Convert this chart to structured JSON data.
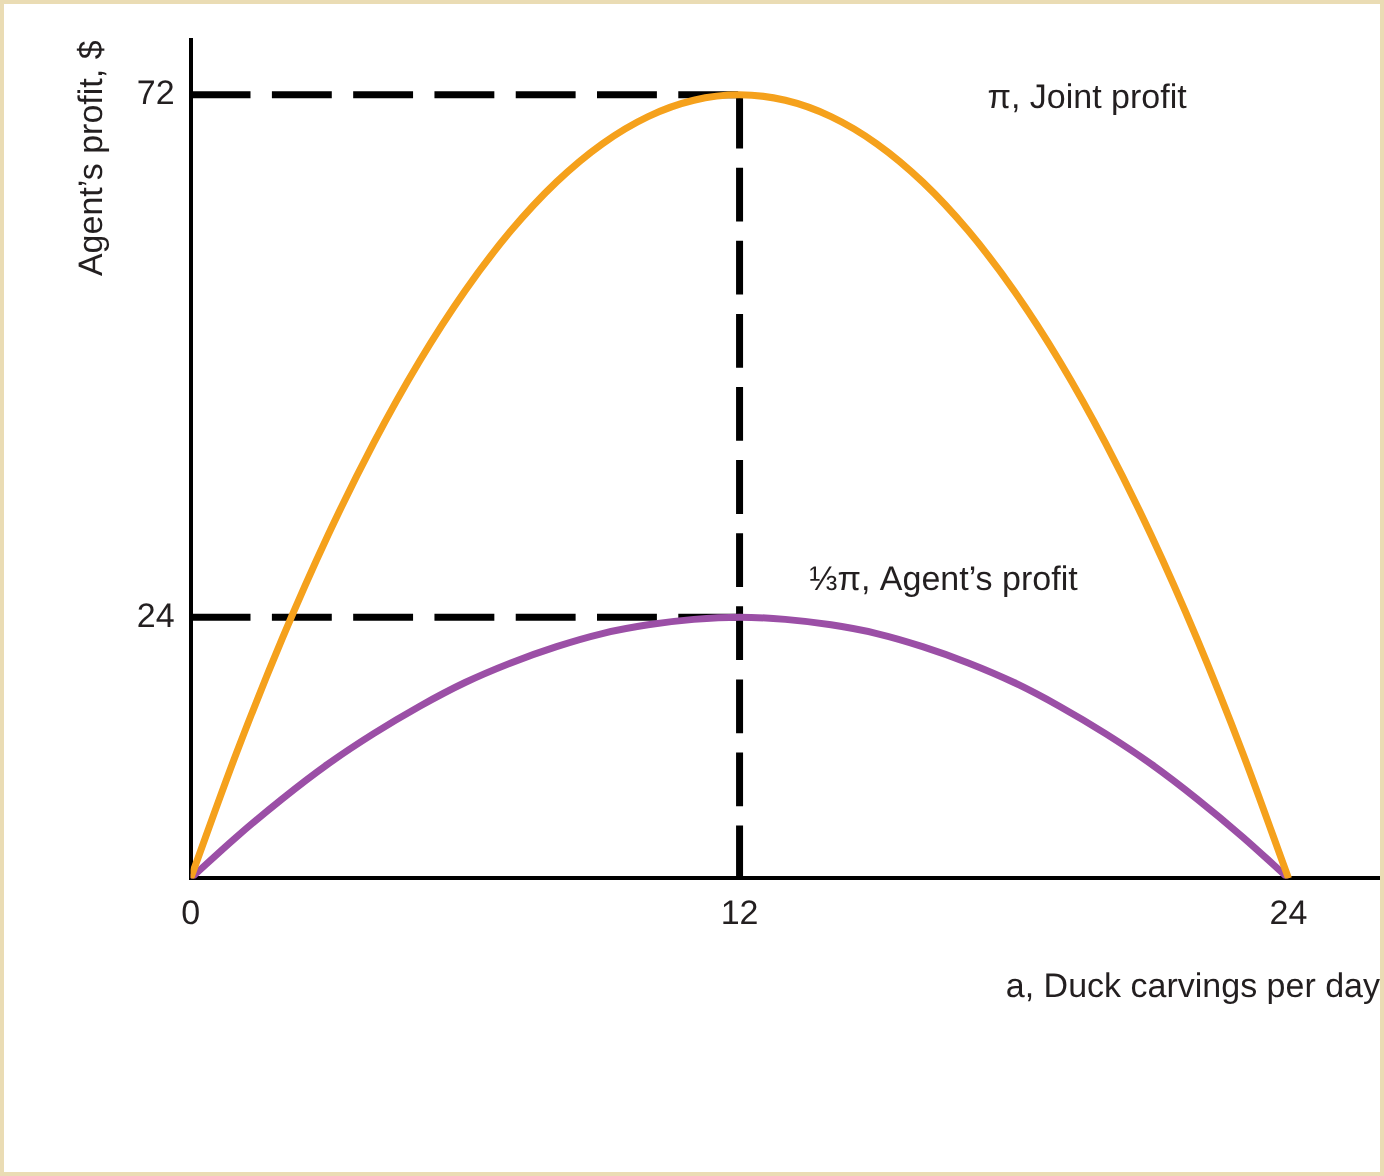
{
  "chart_data": {
    "type": "line",
    "xlabel": "a, Duck carvings per day",
    "ylabel": "Agent’s profit, $",
    "xlim": [
      0,
      26
    ],
    "xticks": [
      0,
      12,
      24
    ],
    "ylim": [
      0,
      77
    ],
    "yticks": [
      24,
      72
    ],
    "grid": false,
    "legend": false,
    "marker": "none",
    "series": [
      {
        "color": "#f5a11c",
        "x": [
          0,
          1,
          2,
          3,
          4,
          5,
          6,
          7,
          8,
          9,
          10,
          11,
          12,
          13,
          14,
          15,
          16,
          17,
          18,
          19,
          20,
          21,
          22,
          23,
          24
        ],
        "values": [
          0,
          11.5,
          22,
          31.5,
          40,
          47.5,
          54,
          59.5,
          64,
          67.5,
          70,
          71.5,
          72,
          71.5,
          70,
          67.5,
          64,
          59.5,
          54,
          47.5,
          40,
          31.5,
          22,
          11.5,
          0
        ]
      },
      {
        "color": "#9b4fa6",
        "x": [
          0,
          1,
          2,
          3,
          4,
          5,
          6,
          7,
          8,
          9,
          10,
          11,
          12,
          13,
          14,
          15,
          16,
          17,
          18,
          19,
          20,
          21,
          22,
          23,
          24
        ],
        "values": [
          0,
          3.8,
          7.3,
          10.5,
          13.3,
          15.8,
          18,
          19.8,
          21.3,
          22.5,
          23.3,
          23.8,
          24,
          23.8,
          23.3,
          22.5,
          21.3,
          19.8,
          18,
          15.8,
          13.3,
          10.5,
          7.3,
          3.8,
          0
        ]
      },
      {
        "color": "#000000",
        "line_style": "dashed",
        "x": [
          0,
          12
        ],
        "values": [
          72,
          72
        ]
      },
      {
        "color": "#000000",
        "line_style": "dashed",
        "x": [
          0,
          12
        ],
        "values": [
          24,
          24
        ]
      },
      {
        "color": "#000000",
        "line_style": "dashed",
        "x": [
          12,
          12
        ],
        "values": [
          72,
          0
        ]
      }
    ],
    "annotations": [
      "π, Joint profit",
      "⅓π, Agent’s profit"
    ]
  }
}
